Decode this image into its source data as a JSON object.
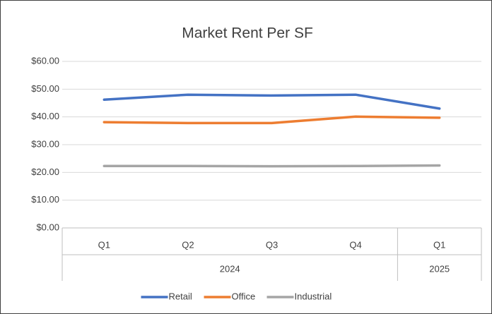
{
  "chart_data": {
    "type": "line",
    "title": "Market Rent Per SF",
    "categories": [
      "Q1",
      "Q2",
      "Q3",
      "Q4",
      "Q1"
    ],
    "category_groups": [
      {
        "name": "2024",
        "count": 4
      },
      {
        "name": "2025",
        "count": 1
      }
    ],
    "series": [
      {
        "name": "Retail",
        "color": "#4472c4",
        "values": [
          46.2,
          48.0,
          47.7,
          48.0,
          43.0
        ]
      },
      {
        "name": "Office",
        "color": "#ed7d31",
        "values": [
          38.1,
          37.8,
          37.8,
          40.1,
          39.7
        ]
      },
      {
        "name": "Industrial",
        "color": "#a5a5a5",
        "values": [
          22.3,
          22.3,
          22.2,
          22.3,
          22.5
        ]
      }
    ],
    "ylim": [
      0,
      60
    ],
    "yticks": [
      {
        "value": 0,
        "label": "$0.00"
      },
      {
        "value": 10,
        "label": "$10.00"
      },
      {
        "value": 20,
        "label": "$20.00"
      },
      {
        "value": 30,
        "label": "$30.00"
      },
      {
        "value": 40,
        "label": "$40.00"
      },
      {
        "value": 50,
        "label": "$50.00"
      },
      {
        "value": 60,
        "label": "$60.00"
      }
    ],
    "grid": true,
    "legend": "bottom"
  }
}
